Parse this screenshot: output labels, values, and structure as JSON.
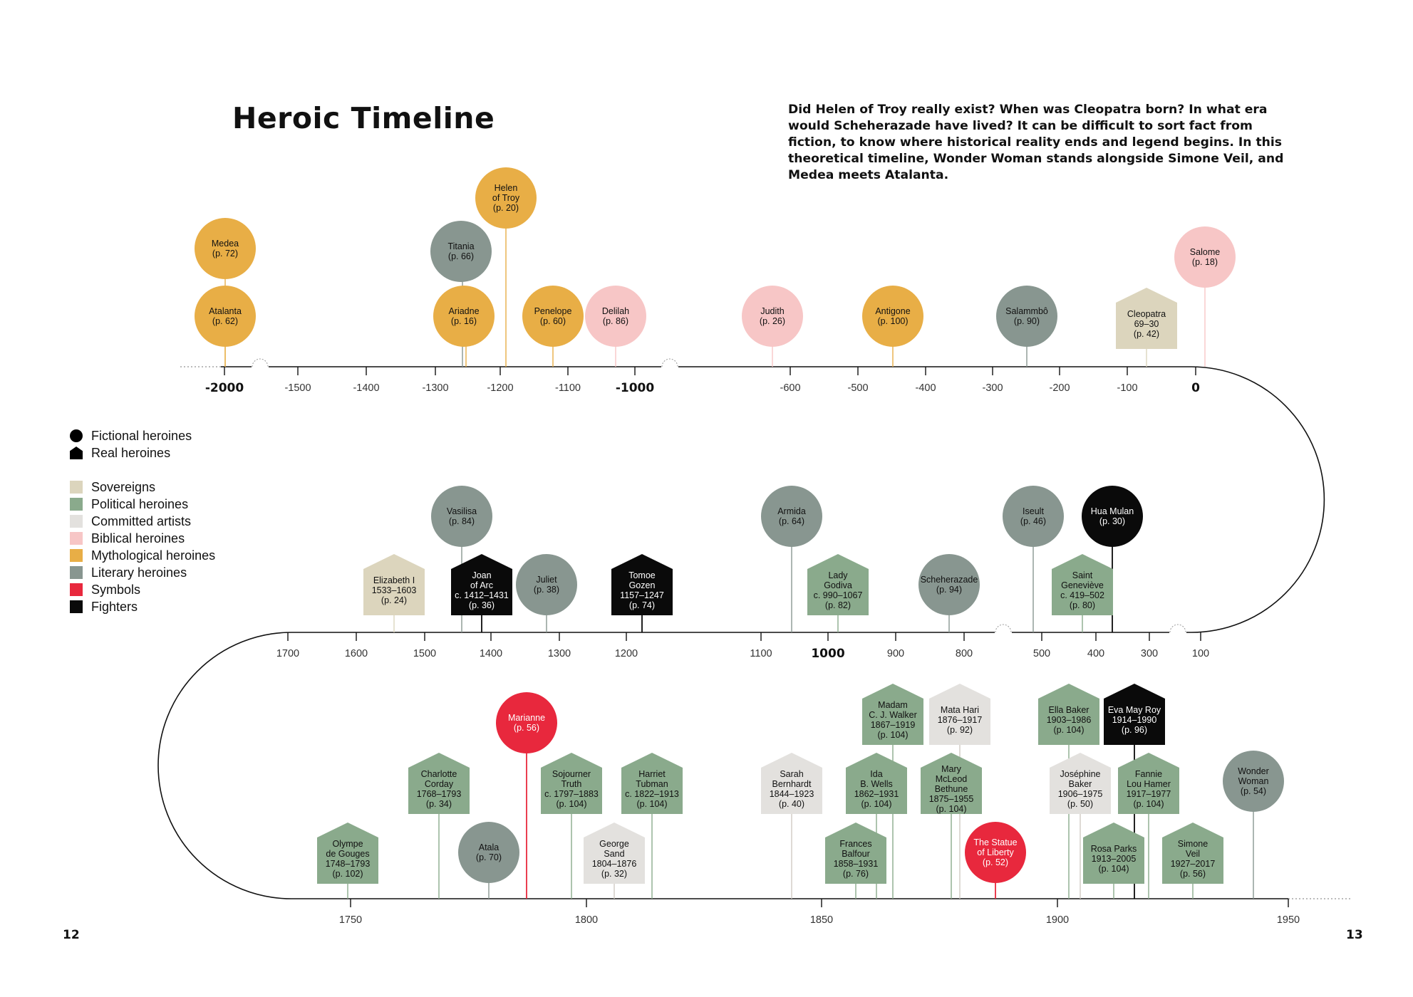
{
  "title": "Heroic Timeline",
  "intro": "Did Helen of Troy really exist? When was Cleopatra born? In what era would Scheherazade have lived? It can be difficult to sort fact from fiction, to know where historical reality ends and legend begins. In this theoretical timeline, Wonder Woman stands alongside Simone Veil, and Medea meets Atalanta.",
  "page_left": "12",
  "page_right": "13",
  "colors": {
    "sovereigns": "#dcd5bd",
    "political": "#8aaa8c",
    "artists": "#e3e1de",
    "biblical": "#f7c6c6",
    "mythological": "#e8ae46",
    "literary": "#889690",
    "symbols": "#e8283d",
    "fighters": "#0a0a0a",
    "axis": "#111111"
  },
  "legend": {
    "shapes": [
      {
        "label": "Fictional heroines",
        "icon": "circle-icon"
      },
      {
        "label": "Real heroines",
        "icon": "house-icon"
      }
    ],
    "categories": [
      {
        "label": "Sovereigns",
        "cat": "sovereigns"
      },
      {
        "label": "Political heroines",
        "cat": "political"
      },
      {
        "label": "Committed artists",
        "cat": "artists"
      },
      {
        "label": "Biblical heroines",
        "cat": "biblical"
      },
      {
        "label": "Mythological heroines",
        "cat": "mythological"
      },
      {
        "label": "Literary heroines",
        "cat": "literary"
      },
      {
        "label": "Symbols",
        "cat": "symbols"
      },
      {
        "label": "Fighters",
        "cat": "fighters"
      }
    ]
  },
  "rows": [
    {
      "id": "ancient",
      "ticks": [
        {
          "label": "-2000",
          "major": true,
          "year": -2000
        },
        {
          "label": "-1500",
          "year": -1500
        },
        {
          "label": "-1400",
          "year": -1400
        },
        {
          "label": "-1300",
          "year": -1300
        },
        {
          "label": "-1200",
          "year": -1200
        },
        {
          "label": "-1100",
          "year": -1100
        },
        {
          "label": "-1000",
          "major": true,
          "year": -1000
        },
        {
          "label": "-600",
          "year": -600
        },
        {
          "label": "-500",
          "year": -500
        },
        {
          "label": "-400",
          "year": -400
        },
        {
          "label": "-300",
          "year": -300
        },
        {
          "label": "-200",
          "year": -200
        },
        {
          "label": "-100",
          "year": -100
        },
        {
          "label": "0",
          "major": true,
          "year": 0
        }
      ]
    },
    {
      "id": "medieval",
      "ticks": [
        {
          "label": "1700",
          "year": 1700
        },
        {
          "label": "1600",
          "year": 1600
        },
        {
          "label": "1500",
          "year": 1500
        },
        {
          "label": "1400",
          "year": 1400
        },
        {
          "label": "1300",
          "year": 1300
        },
        {
          "label": "1200",
          "year": 1200
        },
        {
          "label": "1100",
          "year": 1100
        },
        {
          "label": "1000",
          "major": true,
          "year": 1000
        },
        {
          "label": "900",
          "year": 900
        },
        {
          "label": "800",
          "year": 800
        },
        {
          "label": "500",
          "year": 500
        },
        {
          "label": "400",
          "year": 400
        },
        {
          "label": "300",
          "year": 300
        },
        {
          "label": "100",
          "year": 100
        }
      ]
    },
    {
      "id": "modern",
      "ticks": [
        {
          "label": "1750",
          "year": 1750
        },
        {
          "label": "1800",
          "year": 1800
        },
        {
          "label": "1850",
          "year": 1850
        },
        {
          "label": "1900",
          "year": 1900
        },
        {
          "label": "1950",
          "year": 1950
        }
      ]
    }
  ],
  "heroines": [
    {
      "id": "medea",
      "row": 0,
      "shape": "circle",
      "cat": "mythological",
      "lines": [
        "Medea",
        "(p. 72)"
      ]
    },
    {
      "id": "atalanta",
      "row": 0,
      "shape": "circle",
      "cat": "mythological",
      "lines": [
        "Atalanta",
        "(p. 62)"
      ]
    },
    {
      "id": "titania",
      "row": 0,
      "shape": "circle",
      "cat": "literary",
      "lines": [
        "Titania",
        "(p. 66)"
      ]
    },
    {
      "id": "helen",
      "row": 0,
      "shape": "circle",
      "cat": "mythological",
      "lines": [
        "Helen",
        "of Troy",
        "(p. 20)"
      ]
    },
    {
      "id": "ariadne",
      "row": 0,
      "shape": "circle",
      "cat": "mythological",
      "lines": [
        "Ariadne",
        "(p. 16)"
      ]
    },
    {
      "id": "penelope",
      "row": 0,
      "shape": "circle",
      "cat": "mythological",
      "lines": [
        "Penelope",
        "(p. 60)"
      ]
    },
    {
      "id": "delilah",
      "row": 0,
      "shape": "circle",
      "cat": "biblical",
      "lines": [
        "Delilah",
        "(p. 86)"
      ]
    },
    {
      "id": "judith",
      "row": 0,
      "shape": "circle",
      "cat": "biblical",
      "lines": [
        "Judith",
        "(p. 26)"
      ]
    },
    {
      "id": "antigone",
      "row": 0,
      "shape": "circle",
      "cat": "mythological",
      "lines": [
        "Antigone",
        "(p. 100)"
      ]
    },
    {
      "id": "salammbo",
      "row": 0,
      "shape": "circle",
      "cat": "literary",
      "lines": [
        "Salammbô",
        "(p. 90)"
      ]
    },
    {
      "id": "cleopatra",
      "row": 0,
      "shape": "house",
      "cat": "sovereigns",
      "lines": [
        "Cleopatra",
        "69–30",
        "(p. 42)"
      ]
    },
    {
      "id": "salome",
      "row": 0,
      "shape": "circle",
      "cat": "biblical",
      "lines": [
        "Salome",
        "(p. 18)"
      ]
    },
    {
      "id": "vasilisa",
      "row": 1,
      "shape": "circle",
      "cat": "literary",
      "lines": [
        "Vasilisa",
        "(p. 84)"
      ]
    },
    {
      "id": "elizabeth",
      "row": 1,
      "shape": "house",
      "cat": "sovereigns",
      "lines": [
        "Elizabeth I",
        "1533–1603",
        "(p. 24)"
      ]
    },
    {
      "id": "joan",
      "row": 1,
      "shape": "house",
      "cat": "fighters",
      "lines": [
        "Joan",
        "of Arc",
        "c. 1412–1431",
        "(p. 36)"
      ]
    },
    {
      "id": "juliet",
      "row": 1,
      "shape": "circle",
      "cat": "literary",
      "lines": [
        "Juliet",
        "(p. 38)"
      ]
    },
    {
      "id": "tomoe",
      "row": 1,
      "shape": "house",
      "cat": "fighters",
      "lines": [
        "Tomoe",
        "Gozen",
        "1157–1247",
        "(p. 74)"
      ]
    },
    {
      "id": "armida",
      "row": 1,
      "shape": "circle",
      "cat": "literary",
      "lines": [
        "Armida",
        "(p. 64)"
      ]
    },
    {
      "id": "godiva",
      "row": 1,
      "shape": "house",
      "cat": "political",
      "lines": [
        "Lady",
        "Godiva",
        "c. 990–1067",
        "(p. 82)"
      ]
    },
    {
      "id": "scheherazade",
      "row": 1,
      "shape": "circle",
      "cat": "literary",
      "lines": [
        "Scheherazade",
        "(p. 94)"
      ]
    },
    {
      "id": "iseult",
      "row": 1,
      "shape": "circle",
      "cat": "literary",
      "lines": [
        "Iseult",
        "(p. 46)"
      ]
    },
    {
      "id": "mulan",
      "row": 1,
      "shape": "circle",
      "cat": "fighters",
      "lines": [
        "Hua Mulan",
        "(p. 30)"
      ]
    },
    {
      "id": "genevieve",
      "row": 1,
      "shape": "house",
      "cat": "political",
      "lines": [
        "Saint",
        "Geneviève",
        "c. 419–502",
        "(p. 80)"
      ]
    },
    {
      "id": "gouges",
      "row": 2,
      "shape": "house",
      "cat": "political",
      "lines": [
        "Olympe",
        "de Gouges",
        "1748–1793",
        "(p. 102)"
      ]
    },
    {
      "id": "corday",
      "row": 2,
      "shape": "house",
      "cat": "political",
      "lines": [
        "Charlotte",
        "Corday",
        "1768–1793",
        "(p. 34)"
      ]
    },
    {
      "id": "atala",
      "row": 2,
      "shape": "circle",
      "cat": "literary",
      "lines": [
        "Atala",
        "(p. 70)"
      ]
    },
    {
      "id": "marianne",
      "row": 2,
      "shape": "circle",
      "cat": "symbols",
      "lines": [
        "Marianne",
        "(p. 56)"
      ]
    },
    {
      "id": "truth",
      "row": 2,
      "shape": "house",
      "cat": "political",
      "lines": [
        "Sojourner",
        "Truth",
        "c. 1797–1883",
        "(p. 104)"
      ]
    },
    {
      "id": "sand",
      "row": 2,
      "shape": "house",
      "cat": "artists",
      "lines": [
        "George",
        "Sand",
        "1804–1876",
        "(p. 32)"
      ]
    },
    {
      "id": "tubman",
      "row": 2,
      "shape": "house",
      "cat": "political",
      "lines": [
        "Harriet",
        "Tubman",
        "c. 1822–1913",
        "(p. 104)"
      ]
    },
    {
      "id": "bernhardt",
      "row": 2,
      "shape": "house",
      "cat": "artists",
      "lines": [
        "Sarah",
        "Bernhardt",
        "1844–1923",
        "(p. 40)"
      ]
    },
    {
      "id": "balfour",
      "row": 2,
      "shape": "house",
      "cat": "political",
      "lines": [
        "Frances",
        "Balfour",
        "1858–1931",
        "(p. 76)"
      ]
    },
    {
      "id": "wells",
      "row": 2,
      "shape": "house",
      "cat": "political",
      "lines": [
        "Ida",
        "B. Wells",
        "1862–1931",
        "(p. 104)"
      ]
    },
    {
      "id": "walker",
      "row": 2,
      "shape": "house",
      "cat": "political",
      "lines": [
        "Madam",
        "C. J. Walker",
        "1867–1919",
        "(p. 104)"
      ]
    },
    {
      "id": "hari",
      "row": 2,
      "shape": "house",
      "cat": "artists",
      "lines": [
        "Mata Hari",
        "1876–1917",
        "(p. 92)"
      ]
    },
    {
      "id": "bethune",
      "row": 2,
      "shape": "house",
      "cat": "political",
      "lines": [
        "Mary",
        "McLeod",
        "Bethune",
        "1875–1955",
        "(p. 104)"
      ]
    },
    {
      "id": "liberty",
      "row": 2,
      "shape": "circle",
      "cat": "symbols",
      "lines": [
        "The Statue",
        "of Liberty",
        "(p. 52)"
      ]
    },
    {
      "id": "ella",
      "row": 2,
      "shape": "house",
      "cat": "political",
      "lines": [
        "Ella Baker",
        "1903–1986",
        "(p. 104)"
      ]
    },
    {
      "id": "josephine",
      "row": 2,
      "shape": "house",
      "cat": "artists",
      "lines": [
        "Joséphine",
        "Baker",
        "1906–1975",
        "(p. 50)"
      ]
    },
    {
      "id": "parks",
      "row": 2,
      "shape": "house",
      "cat": "political",
      "lines": [
        "Rosa Parks",
        "1913–2005",
        "(p. 104)"
      ]
    },
    {
      "id": "roy",
      "row": 2,
      "shape": "house",
      "cat": "fighters",
      "lines": [
        "Eva May Roy",
        "1914–1990",
        "(p. 96)"
      ]
    },
    {
      "id": "hamer",
      "row": 2,
      "shape": "house",
      "cat": "political",
      "lines": [
        "Fannie",
        "Lou Hamer",
        "1917–1977",
        "(p. 104)"
      ]
    },
    {
      "id": "veil",
      "row": 2,
      "shape": "house",
      "cat": "political",
      "lines": [
        "Simone",
        "Veil",
        "1927–2017",
        "(p. 56)"
      ]
    },
    {
      "id": "wonder",
      "row": 2,
      "shape": "circle",
      "cat": "literary",
      "lines": [
        "Wonder",
        "Woman",
        "(p. 54)"
      ]
    }
  ]
}
